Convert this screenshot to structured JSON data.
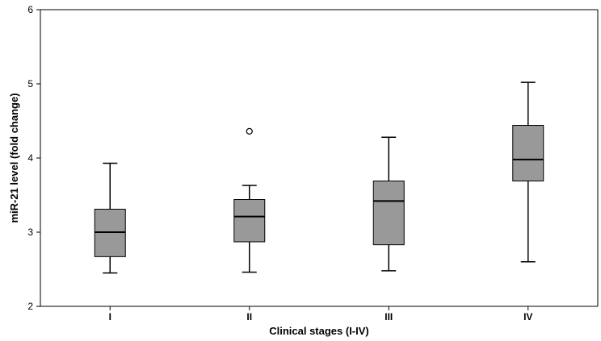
{
  "chart_data": {
    "type": "boxplot",
    "title": "",
    "xlabel": "Clinical stages (I-IV)",
    "ylabel": "miR-21 level (fold change)",
    "ylim": [
      2,
      6
    ],
    "yticks": [
      2,
      3,
      4,
      5,
      6
    ],
    "grid": false,
    "box_color": "#999999",
    "categories": [
      "I",
      "II",
      "III",
      "IV"
    ],
    "boxes": [
      {
        "category": "I",
        "whisker_low": 2.45,
        "q1": 2.67,
        "median": 3.0,
        "q3": 3.31,
        "whisker_high": 3.93,
        "outliers": []
      },
      {
        "category": "II",
        "whisker_low": 2.46,
        "q1": 2.87,
        "median": 3.21,
        "q3": 3.44,
        "whisker_high": 3.63,
        "outliers": [
          4.36
        ]
      },
      {
        "category": "III",
        "whisker_low": 2.48,
        "q1": 2.83,
        "median": 3.42,
        "q3": 3.69,
        "whisker_high": 4.28,
        "outliers": []
      },
      {
        "category": "IV",
        "whisker_low": 2.6,
        "q1": 3.69,
        "median": 3.98,
        "q3": 4.44,
        "whisker_high": 5.02,
        "outliers": []
      }
    ]
  }
}
